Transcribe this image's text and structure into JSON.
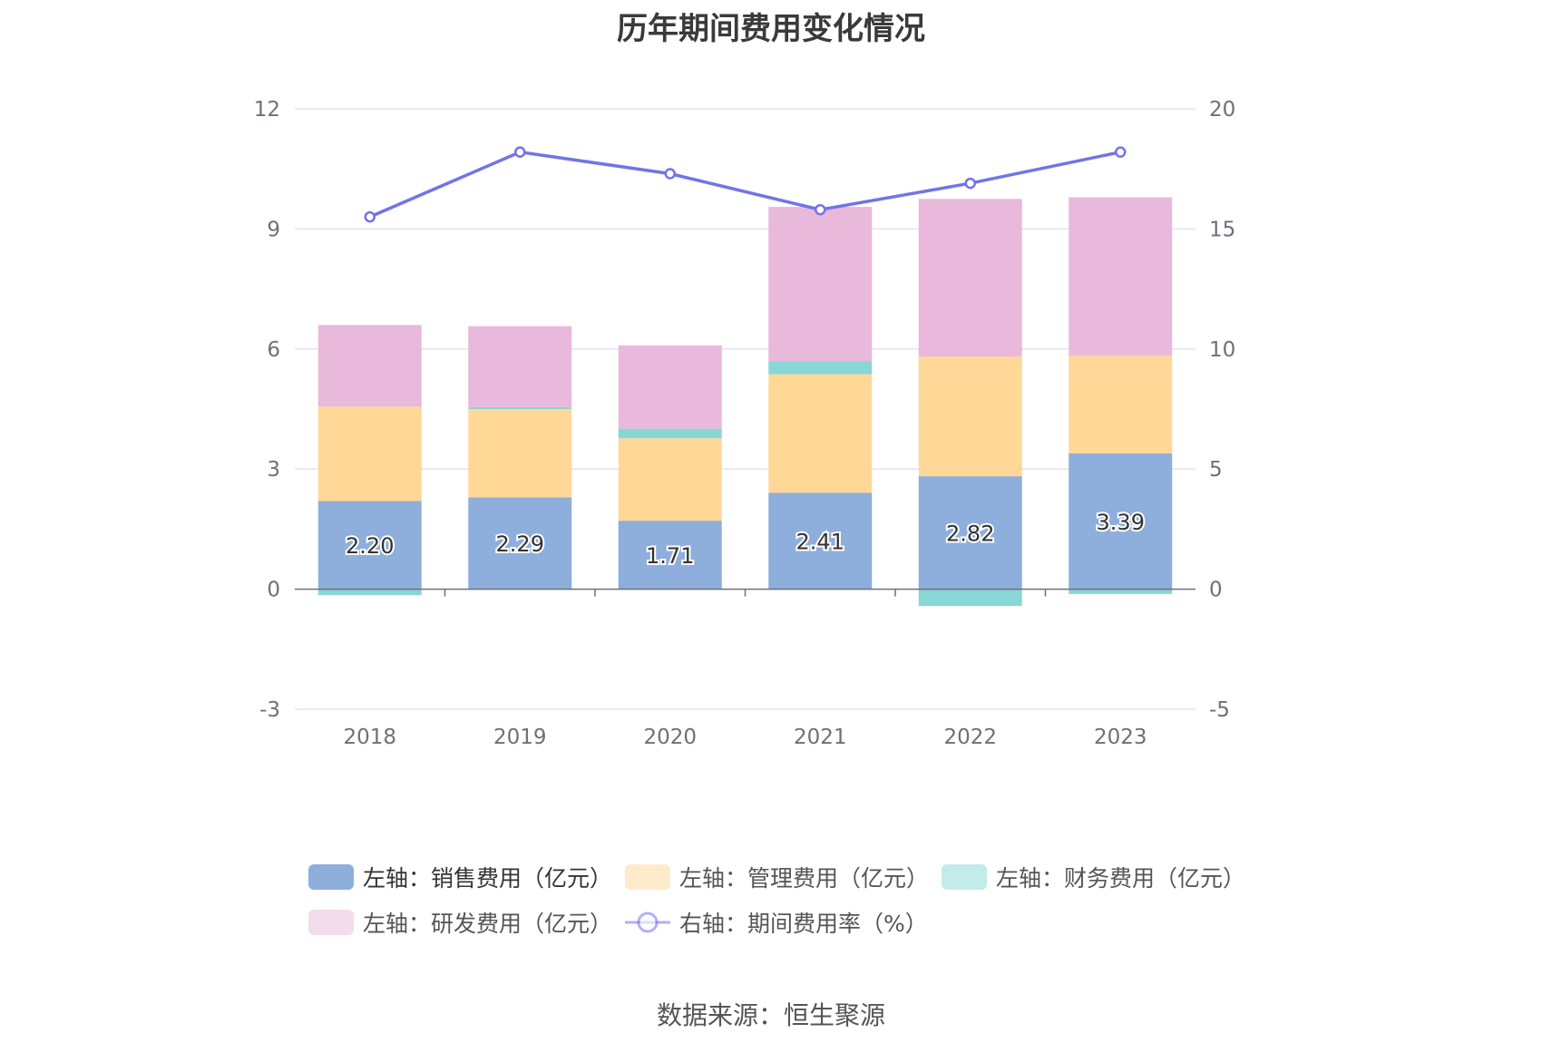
{
  "title": "历年期间费用变化情况",
  "source": "数据来源：恒生聚源",
  "colors": {
    "sales": "#8eaedb",
    "admin": "#ffd898",
    "finance": "#87d7d6",
    "rnd": "#e8b9da",
    "rate": "#7373e8",
    "grid": "#e3e3f5",
    "axis": "#6e7079"
  },
  "chart_data": {
    "type": "bar",
    "stacked": true,
    "title": "历年期间费用变化情况",
    "categories": [
      "2018",
      "2019",
      "2020",
      "2021",
      "2022",
      "2023"
    ],
    "left_axis": {
      "ylim": [
        -3,
        12
      ],
      "ticks": [
        "-3",
        "0",
        "3",
        "6",
        "9",
        "12"
      ]
    },
    "right_axis": {
      "ylim": [
        -5,
        20
      ],
      "ticks": [
        "-5",
        "0",
        "5",
        "10",
        "15",
        "20"
      ]
    },
    "grid": true,
    "legend_position": "bottom",
    "series": [
      {
        "key": "sales",
        "name": "左轴：销售费用（亿元）",
        "axis": "left",
        "type": "bar",
        "values": [
          2.2,
          2.29,
          1.71,
          2.41,
          2.82,
          3.39
        ],
        "labels": [
          "2.20",
          "2.29",
          "1.71",
          "2.41",
          "2.82",
          "3.39"
        ]
      },
      {
        "key": "admin",
        "name": "左轴：管理费用（亿元）",
        "axis": "left",
        "type": "bar",
        "values": [
          2.36,
          2.21,
          2.06,
          2.96,
          2.99,
          2.44
        ]
      },
      {
        "key": "finance",
        "name": "左轴：财务费用（亿元）",
        "axis": "left",
        "type": "bar",
        "values": [
          -0.15,
          0.05,
          0.24,
          0.32,
          -0.42,
          -0.12
        ]
      },
      {
        "key": "rnd",
        "name": "左轴：研发费用（亿元）",
        "axis": "left",
        "type": "bar",
        "values": [
          2.04,
          2.02,
          2.08,
          3.86,
          3.94,
          3.96
        ]
      },
      {
        "key": "rate",
        "name": "右轴：期间费用率（%）",
        "axis": "right",
        "type": "line",
        "values": [
          15.5,
          18.2,
          17.3,
          15.8,
          16.9,
          18.2
        ]
      }
    ]
  }
}
